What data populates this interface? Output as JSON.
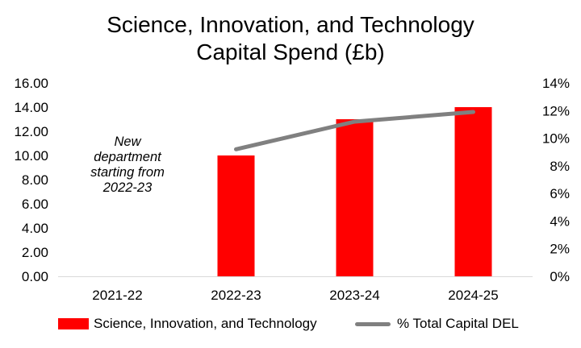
{
  "chart_data": {
    "type": "bar",
    "title": "Science, Innovation, and Technology\nCapital Spend (£b)",
    "title_lines": [
      "Science, Innovation, and Technology",
      "Capital Spend (£b)"
    ],
    "categories": [
      "2021-22",
      "2022-23",
      "2023-24",
      "2024-25"
    ],
    "series": [
      {
        "name": "Science, Innovation, and Technology",
        "type": "bar",
        "axis": "left",
        "color": "#ff0000",
        "values": [
          null,
          10.0,
          13.0,
          14.0
        ]
      },
      {
        "name": "% Total Capital DEL",
        "type": "line",
        "axis": "right",
        "color": "#808080",
        "values": [
          null,
          9.2,
          11.2,
          11.9
        ]
      }
    ],
    "ylim": [
      0,
      16
    ],
    "y_ticks": [
      "0.00",
      "2.00",
      "4.00",
      "6.00",
      "8.00",
      "10.00",
      "12.00",
      "14.00",
      "16.00"
    ],
    "y2lim": [
      0,
      14
    ],
    "y2_ticks": [
      "0%",
      "2%",
      "4%",
      "6%",
      "8%",
      "10%",
      "12%",
      "14%"
    ],
    "annotation_lines": [
      "New",
      "department",
      "starting from",
      "2022-23"
    ],
    "legend_position": "bottom",
    "grid": false
  }
}
